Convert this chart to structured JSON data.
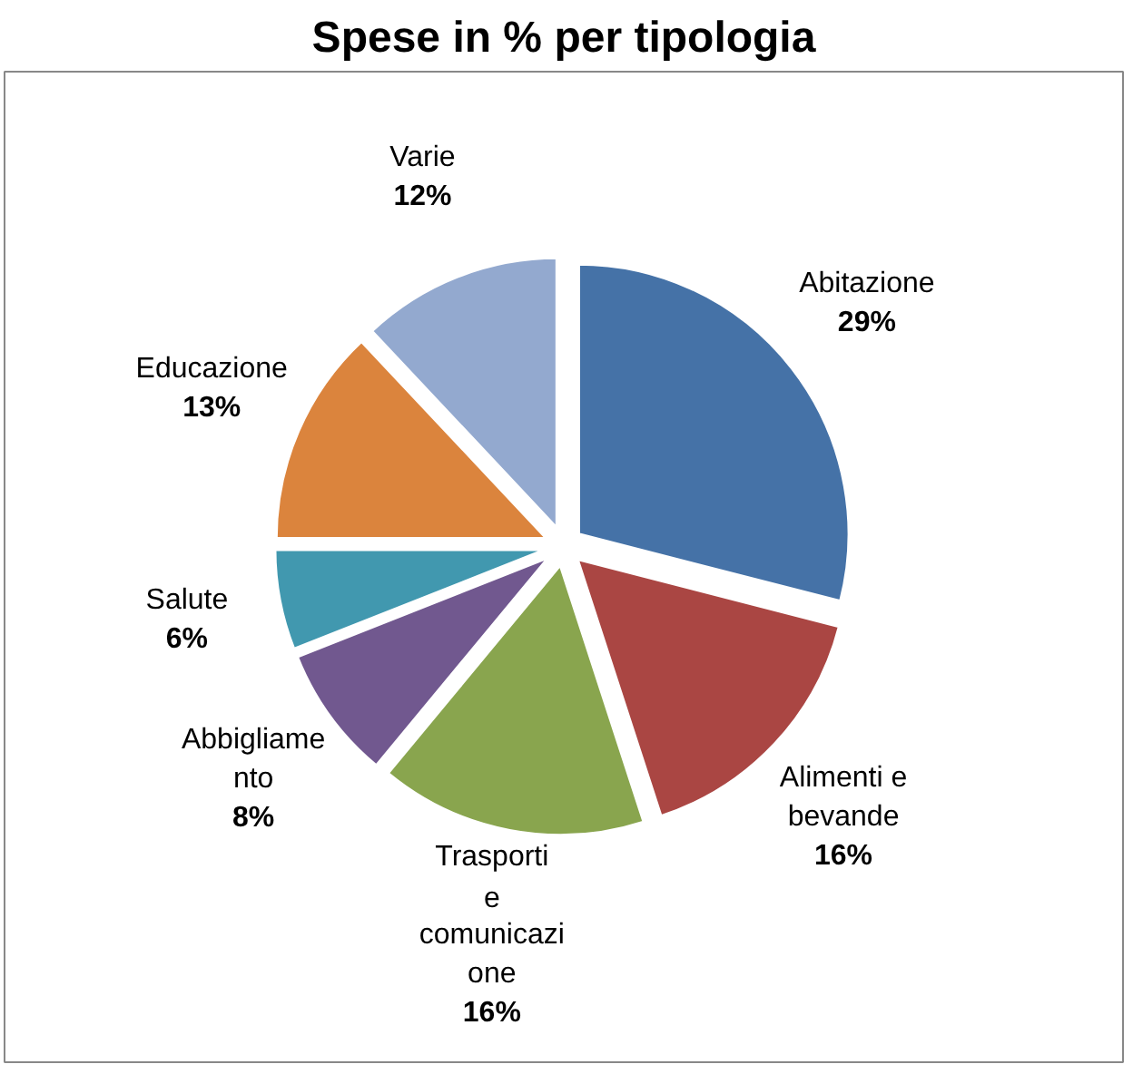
{
  "chart_data": {
    "type": "pie",
    "title": "Spese in % per tipologia",
    "categories": [
      "Abitazione",
      "Alimenti e bevande",
      "Trasporti e comunicazione",
      "Abbigliamento",
      "Salute",
      "Educazione",
      "Varie"
    ],
    "values": [
      29,
      16,
      16,
      8,
      6,
      13,
      12
    ],
    "value_labels": [
      "29%",
      "16%",
      "16%",
      "8%",
      "6%",
      "13%",
      "12%"
    ],
    "colors": [
      "#4572a7",
      "#aa4643",
      "#89a54e",
      "#71588f",
      "#4198af",
      "#db843d",
      "#93a9cf"
    ]
  }
}
